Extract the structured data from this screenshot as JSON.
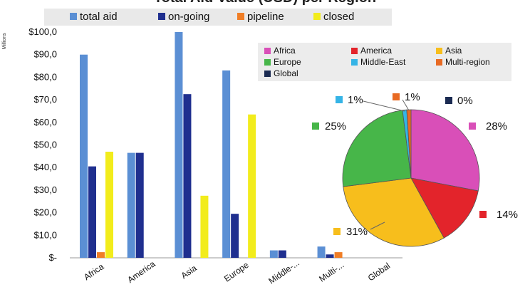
{
  "title": "Total Aid Value (USD) per Region",
  "chart_data": [
    {
      "type": "bar",
      "title": "Total Aid Value (USD) per Region",
      "ylabel": "Millions",
      "categories": [
        "Africa",
        "America",
        "Asia",
        "Europe",
        "Middle-...",
        "Multi-...",
        "Global"
      ],
      "ylim": [
        0,
        100
      ],
      "yticks": [
        "$-",
        "$10,0",
        "$20,0",
        "$30,0",
        "$40,0",
        "$50,0",
        "$60,0",
        "$70,0",
        "$80,0",
        "$90,0",
        "$100,0"
      ],
      "legend_position": "top",
      "series": [
        {
          "name": "total aid",
          "color": "#5b8fd4",
          "values": [
            90,
            46.5,
            100,
            83,
            3.3,
            5,
            0
          ]
        },
        {
          "name": "on-going",
          "color": "#1f2f8f",
          "values": [
            40.5,
            46.5,
            72.5,
            19.5,
            3.3,
            1.5,
            0
          ]
        },
        {
          "name": "pipeline",
          "color": "#f07e26",
          "values": [
            2.5,
            0,
            0,
            0,
            0,
            2.5,
            0
          ]
        },
        {
          "name": "closed",
          "color": "#f2ec1c",
          "values": [
            47,
            0,
            27.5,
            63.5,
            0,
            0,
            0
          ]
        }
      ]
    },
    {
      "type": "pie",
      "legend_position": "top",
      "slices": [
        {
          "name": "Africa",
          "value": 28,
          "label": "28%",
          "color": "#d94fb8"
        },
        {
          "name": "America",
          "value": 14,
          "label": "14%",
          "color": "#e3242b"
        },
        {
          "name": "Asia",
          "value": 31,
          "label": "31%",
          "color": "#f7be1c"
        },
        {
          "name": "Europe",
          "value": 25,
          "label": "25%",
          "color": "#47b649"
        },
        {
          "name": "Middle-East",
          "value": 1,
          "label": "1%",
          "color": "#35b4e6"
        },
        {
          "name": "Multi-region",
          "value": 1,
          "label": "1%",
          "color": "#e86a23"
        },
        {
          "name": "Global",
          "value": 0,
          "label": "0%",
          "color": "#1b2b52"
        }
      ]
    }
  ]
}
